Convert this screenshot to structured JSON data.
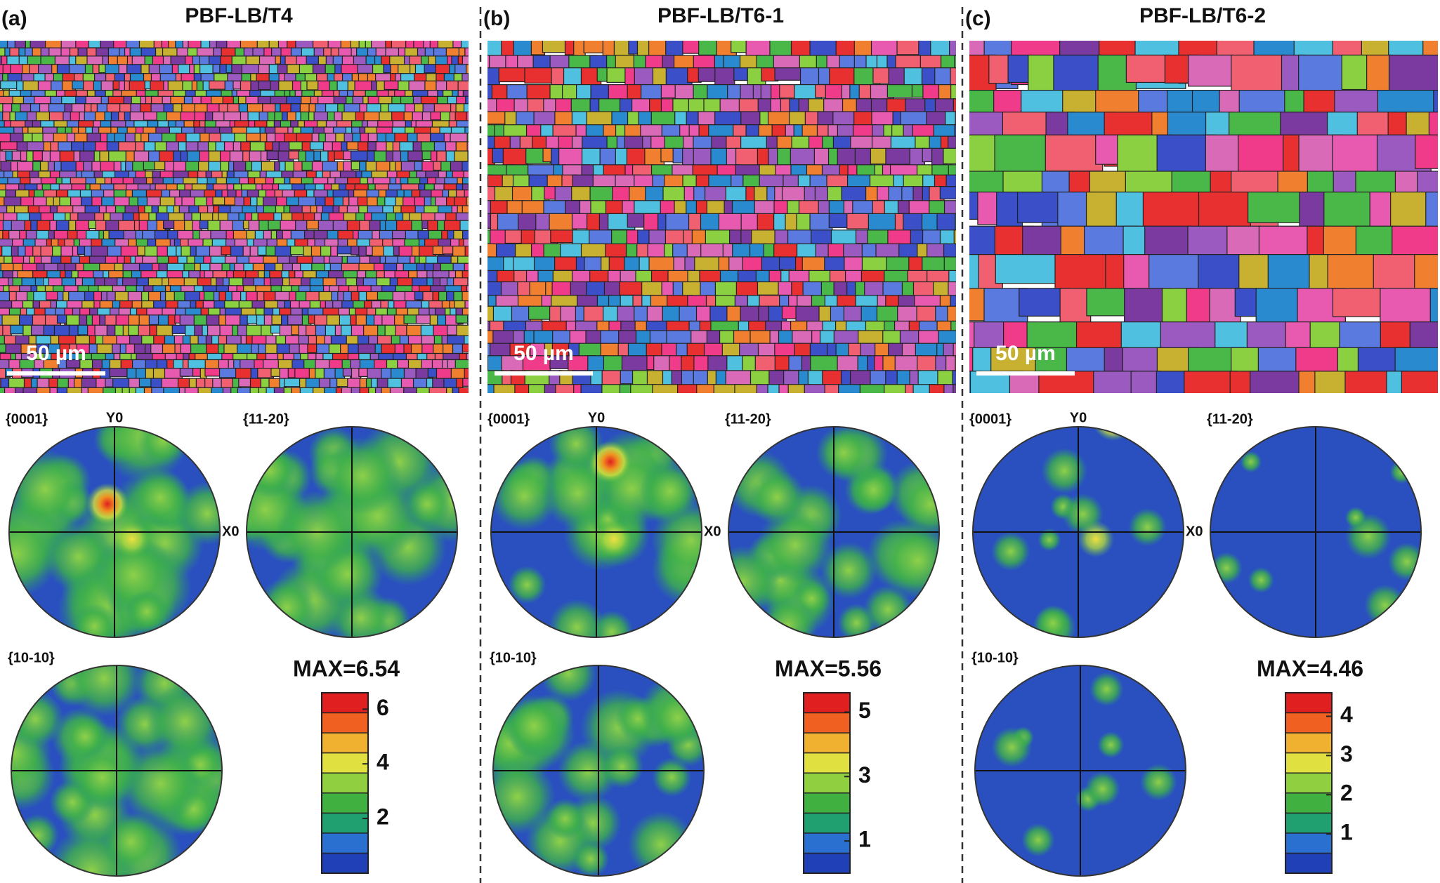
{
  "panels": [
    {
      "label": "(a)",
      "title": "PBF-LB/T4",
      "scale_bar": "50 µm",
      "pole_figures": [
        {
          "label": "{0001}",
          "y_axis": "Y0",
          "x_axis": "X0"
        },
        {
          "label": "{11-20}"
        },
        {
          "label": "{10-10}"
        }
      ],
      "max_label": "MAX=6.54",
      "colorbar_ticks": [
        2,
        4,
        6
      ]
    },
    {
      "label": "(b)",
      "title": "PBF-LB/T6-1",
      "scale_bar": "50 µm",
      "pole_figures": [
        {
          "label": "{0001}",
          "y_axis": "Y0",
          "x_axis": "X0"
        },
        {
          "label": "{11-20}"
        },
        {
          "label": "{10-10}"
        }
      ],
      "max_label": "MAX=5.56",
      "colorbar_ticks": [
        1,
        3,
        5
      ]
    },
    {
      "label": "(c)",
      "title": "PBF-LB/T6-2",
      "scale_bar": "50 µm",
      "pole_figures": [
        {
          "label": "{0001}",
          "y_axis": "Y0",
          "x_axis": "X0"
        },
        {
          "label": "{11-20}"
        },
        {
          "label": "{10-10}"
        }
      ],
      "max_label": "MAX=4.46",
      "colorbar_ticks": [
        1,
        2,
        3,
        4
      ]
    }
  ]
}
